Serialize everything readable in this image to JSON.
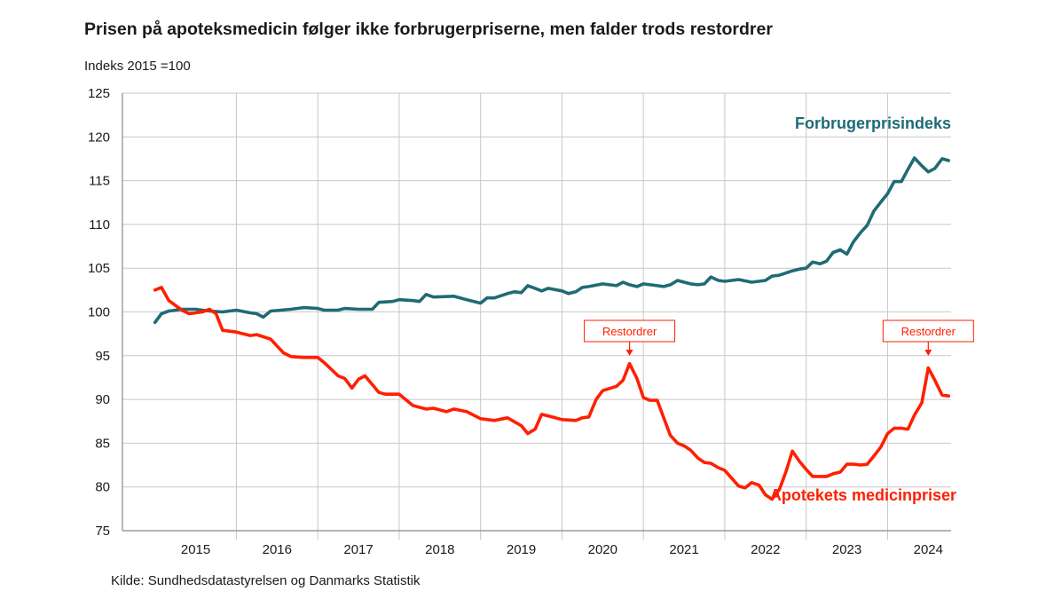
{
  "header": {
    "title": "Prisen på apoteksmedicin følger ikke forbrugerpriserne, men falder trods restordrer",
    "subtitle": "Indeks 2015 =100"
  },
  "footer": {
    "source": "Kilde: Sundhedsdatastyrelsen og Danmarks Statistik"
  },
  "colors": {
    "cpi": "#1f6b75",
    "medicine": "#ff1f00",
    "grid": "#c8c8c8",
    "axis": "#888888"
  },
  "chart_data": {
    "type": "line",
    "title": "Prisen på apoteksmedicin følger ikke forbrugerpriserne, men falder trods restordrer",
    "ylabel": "Indeks 2015 =100",
    "xlabel": "",
    "ylim": [
      75,
      125
    ],
    "yticks": [
      "75",
      "80",
      "85",
      "90",
      "95",
      "100",
      "105",
      "110",
      "115",
      "120",
      "125"
    ],
    "xlim": [
      2015.0,
      2024.75
    ],
    "xtick_labels": [
      "2015",
      "2016",
      "2017",
      "2018",
      "2019",
      "2020",
      "2021",
      "2022",
      "2023",
      "2024"
    ],
    "grid": true,
    "series": [
      {
        "name": "Forbrugerprisindeks",
        "color": "#1f6b75",
        "points": [
          [
            2015.0,
            98.8
          ],
          [
            2015.08,
            99.8
          ],
          [
            2015.17,
            100.1
          ],
          [
            2015.33,
            100.3
          ],
          [
            2015.5,
            100.3
          ],
          [
            2015.67,
            100.1
          ],
          [
            2015.83,
            100.0
          ],
          [
            2016.0,
            100.2
          ],
          [
            2016.17,
            99.9
          ],
          [
            2016.25,
            99.8
          ],
          [
            2016.33,
            99.4
          ],
          [
            2016.42,
            100.1
          ],
          [
            2016.67,
            100.3
          ],
          [
            2016.83,
            100.5
          ],
          [
            2017.0,
            100.4
          ],
          [
            2017.08,
            100.2
          ],
          [
            2017.25,
            100.2
          ],
          [
            2017.33,
            100.4
          ],
          [
            2017.5,
            100.3
          ],
          [
            2017.67,
            100.3
          ],
          [
            2017.75,
            101.1
          ],
          [
            2017.92,
            101.2
          ],
          [
            2018.0,
            101.4
          ],
          [
            2018.17,
            101.3
          ],
          [
            2018.25,
            101.2
          ],
          [
            2018.33,
            102.0
          ],
          [
            2018.42,
            101.7
          ],
          [
            2018.67,
            101.8
          ],
          [
            2018.83,
            101.4
          ],
          [
            2019.0,
            101.0
          ],
          [
            2019.08,
            101.6
          ],
          [
            2019.17,
            101.6
          ],
          [
            2019.33,
            102.1
          ],
          [
            2019.42,
            102.3
          ],
          [
            2019.5,
            102.2
          ],
          [
            2019.58,
            103.0
          ],
          [
            2019.67,
            102.7
          ],
          [
            2019.75,
            102.4
          ],
          [
            2019.83,
            102.7
          ],
          [
            2020.0,
            102.4
          ],
          [
            2020.08,
            102.1
          ],
          [
            2020.17,
            102.3
          ],
          [
            2020.25,
            102.8
          ],
          [
            2020.33,
            102.9
          ],
          [
            2020.5,
            103.2
          ],
          [
            2020.67,
            103.0
          ],
          [
            2020.75,
            103.4
          ],
          [
            2020.83,
            103.1
          ],
          [
            2020.92,
            102.9
          ],
          [
            2021.0,
            103.2
          ],
          [
            2021.17,
            103.0
          ],
          [
            2021.25,
            102.9
          ],
          [
            2021.33,
            103.1
          ],
          [
            2021.42,
            103.6
          ],
          [
            2021.5,
            103.4
          ],
          [
            2021.58,
            103.2
          ],
          [
            2021.67,
            103.1
          ],
          [
            2021.75,
            103.2
          ],
          [
            2021.83,
            104.0
          ],
          [
            2021.92,
            103.6
          ],
          [
            2022.0,
            103.5
          ],
          [
            2022.17,
            103.7
          ],
          [
            2022.33,
            103.4
          ],
          [
            2022.5,
            103.6
          ],
          [
            2022.58,
            104.1
          ],
          [
            2022.67,
            104.2
          ],
          [
            2022.83,
            104.7
          ],
          [
            2022.92,
            104.9
          ],
          [
            2023.0,
            105.0
          ],
          [
            2023.08,
            105.7
          ],
          [
            2023.17,
            105.5
          ],
          [
            2023.25,
            105.8
          ],
          [
            2023.33,
            106.8
          ],
          [
            2023.42,
            107.1
          ],
          [
            2023.5,
            106.6
          ],
          [
            2023.58,
            108.0
          ],
          [
            2023.67,
            109.1
          ],
          [
            2023.75,
            109.9
          ],
          [
            2023.83,
            111.5
          ],
          [
            2023.92,
            112.6
          ],
          [
            2024.0,
            113.5
          ],
          [
            2024.08,
            114.9
          ],
          [
            2024.17,
            114.9
          ],
          [
            2024.25,
            116.3
          ],
          [
            2024.33,
            117.6
          ],
          [
            2024.42,
            116.7
          ],
          [
            2024.5,
            116.0
          ],
          [
            2024.58,
            116.4
          ],
          [
            2024.67,
            117.5
          ],
          [
            2024.75,
            117.3
          ]
        ]
      },
      {
        "name": "Apotekets medicinpriser",
        "color": "#ff1f00",
        "points": [
          [
            2015.0,
            102.5
          ],
          [
            2015.08,
            102.8
          ],
          [
            2015.17,
            101.3
          ],
          [
            2015.33,
            100.2
          ],
          [
            2015.42,
            99.8
          ],
          [
            2015.58,
            100.0
          ],
          [
            2015.67,
            100.3
          ],
          [
            2015.75,
            99.8
          ],
          [
            2015.83,
            97.9
          ],
          [
            2016.0,
            97.7
          ],
          [
            2016.17,
            97.3
          ],
          [
            2016.25,
            97.4
          ],
          [
            2016.42,
            96.9
          ],
          [
            2016.58,
            95.3
          ],
          [
            2016.67,
            94.9
          ],
          [
            2016.83,
            94.8
          ],
          [
            2017.0,
            94.8
          ],
          [
            2017.08,
            94.2
          ],
          [
            2017.25,
            92.7
          ],
          [
            2017.33,
            92.4
          ],
          [
            2017.42,
            91.3
          ],
          [
            2017.5,
            92.3
          ],
          [
            2017.58,
            92.7
          ],
          [
            2017.75,
            90.8
          ],
          [
            2017.83,
            90.6
          ],
          [
            2018.0,
            90.6
          ],
          [
            2018.17,
            89.3
          ],
          [
            2018.33,
            88.9
          ],
          [
            2018.42,
            89.0
          ],
          [
            2018.58,
            88.6
          ],
          [
            2018.67,
            88.9
          ],
          [
            2018.83,
            88.6
          ],
          [
            2019.0,
            87.8
          ],
          [
            2019.17,
            87.6
          ],
          [
            2019.33,
            87.9
          ],
          [
            2019.5,
            87.0
          ],
          [
            2019.58,
            86.1
          ],
          [
            2019.67,
            86.6
          ],
          [
            2019.75,
            88.3
          ],
          [
            2019.92,
            87.9
          ],
          [
            2020.0,
            87.7
          ],
          [
            2020.17,
            87.6
          ],
          [
            2020.25,
            87.9
          ],
          [
            2020.33,
            88.0
          ],
          [
            2020.42,
            90.0
          ],
          [
            2020.5,
            91.0
          ],
          [
            2020.67,
            91.5
          ],
          [
            2020.75,
            92.2
          ],
          [
            2020.83,
            94.1
          ],
          [
            2020.92,
            92.4
          ],
          [
            2021.0,
            90.2
          ],
          [
            2021.08,
            89.9
          ],
          [
            2021.17,
            89.9
          ],
          [
            2021.33,
            85.9
          ],
          [
            2021.42,
            85.0
          ],
          [
            2021.5,
            84.7
          ],
          [
            2021.58,
            84.2
          ],
          [
            2021.67,
            83.3
          ],
          [
            2021.75,
            82.8
          ],
          [
            2021.83,
            82.7
          ],
          [
            2021.92,
            82.2
          ],
          [
            2022.0,
            81.9
          ],
          [
            2022.17,
            80.1
          ],
          [
            2022.25,
            79.9
          ],
          [
            2022.33,
            80.5
          ],
          [
            2022.42,
            80.2
          ],
          [
            2022.5,
            79.1
          ],
          [
            2022.58,
            78.6
          ],
          [
            2022.67,
            79.7
          ],
          [
            2022.75,
            81.7
          ],
          [
            2022.83,
            84.1
          ],
          [
            2022.92,
            82.9
          ],
          [
            2023.0,
            82.0
          ],
          [
            2023.08,
            81.2
          ],
          [
            2023.25,
            81.2
          ],
          [
            2023.33,
            81.5
          ],
          [
            2023.42,
            81.7
          ],
          [
            2023.5,
            82.6
          ],
          [
            2023.58,
            82.6
          ],
          [
            2023.67,
            82.5
          ],
          [
            2023.75,
            82.6
          ],
          [
            2023.83,
            83.5
          ],
          [
            2023.92,
            84.6
          ],
          [
            2024.0,
            86.1
          ],
          [
            2024.08,
            86.7
          ],
          [
            2024.17,
            86.7
          ],
          [
            2024.25,
            86.6
          ],
          [
            2024.33,
            88.2
          ],
          [
            2024.42,
            89.6
          ],
          [
            2024.5,
            93.6
          ],
          [
            2024.58,
            92.2
          ],
          [
            2024.67,
            90.5
          ],
          [
            2024.75,
            90.4
          ]
        ]
      }
    ],
    "series_labels": [
      {
        "text": "Forbrugerprisindeks",
        "color": "#1f6b75"
      },
      {
        "text": "Apotekets medicinpriser",
        "color": "#ff1f00"
      }
    ],
    "annotations": [
      {
        "text": "Restordrer",
        "x": 2020.83,
        "y": 94.1
      },
      {
        "text": "Restordrer",
        "x": 2024.5,
        "y": 93.6
      }
    ]
  }
}
